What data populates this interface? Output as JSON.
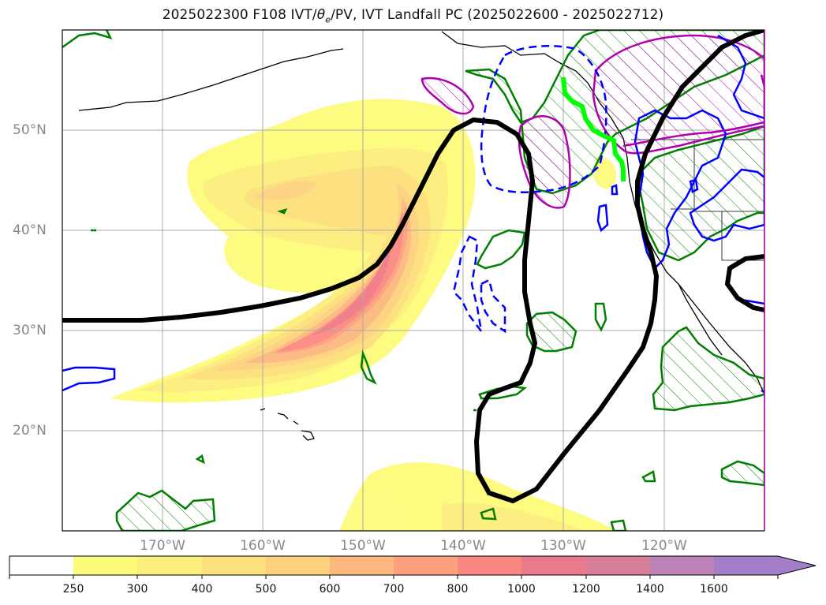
{
  "title": {
    "init": "2025022300",
    "forecast_hour": "F108",
    "fields_prefix": "IVT/",
    "theta": "θ",
    "theta_sub": "e",
    "fields_suffix": "/PV, IVT Landfall PC (2025022600 - 2025022712)"
  },
  "map": {
    "latitude_labels": [
      "50°N",
      "40°N",
      "30°N",
      "20°N"
    ],
    "longitude_labels": [
      "170°W",
      "160°W",
      "150°W",
      "140°W",
      "130°W",
      "120°W"
    ],
    "grid": true,
    "lat_range": [
      10,
      60
    ],
    "lon_range": [
      -180,
      -110
    ]
  },
  "colorbar": {
    "units": "",
    "ticks": [
      "250",
      "300",
      "400",
      "500",
      "600",
      "700",
      "800",
      "1000",
      "1200",
      "1400",
      "1600"
    ],
    "colors": [
      "#ffffff",
      "#fdfb7a",
      "#fcee7a",
      "#fde07b",
      "#fdd17e",
      "#fcb87f",
      "#fda07e",
      "#fb8880",
      "#e87a8c",
      "#d57e98",
      "#bd82b8",
      "#a47dc9"
    ],
    "extend": "max"
  },
  "legend_colors": {
    "ivt_shading": "#fb8880",
    "black_contour": "#000000",
    "green_contour": "#008000",
    "blue_contour": "#0000ff",
    "magenta_contour": "#b000b0",
    "landfall_line": "#00ff00"
  }
}
